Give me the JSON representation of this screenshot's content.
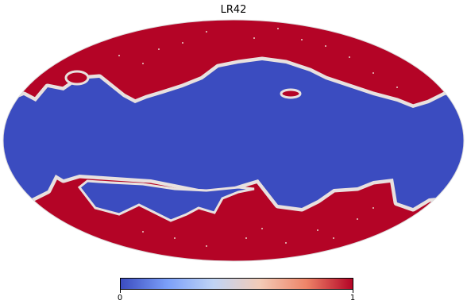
{
  "title": "LR42",
  "colorbar": {
    "min_label": "0",
    "max_label": "1",
    "colormap": "coolwarm",
    "stops": [
      "#3b4cc0",
      "#7b9ff9",
      "#c0d4f5",
      "#f2cbb7",
      "#ee8468",
      "#b40426"
    ]
  },
  "map": {
    "projection": "mollweide",
    "mask_value_color": "#b40426",
    "unmasked_value_color": "#3b4cc0",
    "edge_color": "#dddcdc"
  }
}
